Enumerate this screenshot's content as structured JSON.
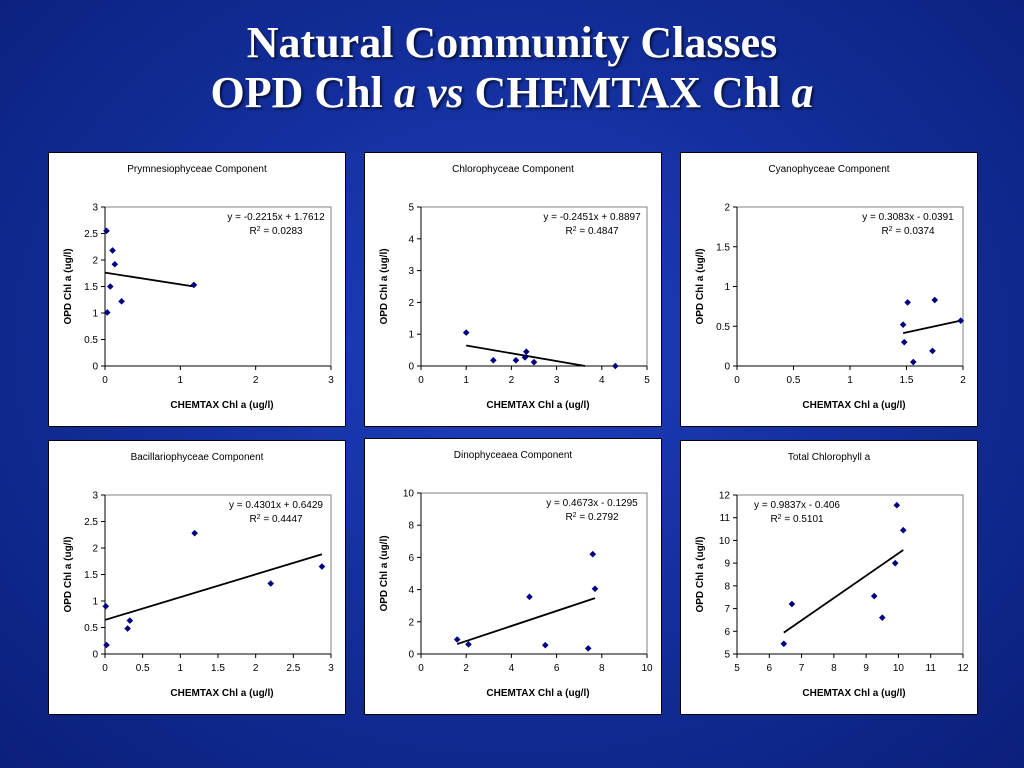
{
  "slide": {
    "title_line1": "Natural Community Classes",
    "title_line2_a": "OPD Chl ",
    "title_line2_b": "a vs",
    "title_line2_c": " CHEMTAX Chl ",
    "title_line2_d": "a"
  },
  "colors": {
    "background": "#14309f",
    "marker": "#000080",
    "line": "#000000"
  },
  "chart_data": [
    {
      "type": "scatter",
      "title": "Prymnesiophyceae Component",
      "xlabel": "CHEMTAX Chl a (ug/l)",
      "ylabel": "OPD Chl a (ug/l)",
      "xlim": [
        0,
        3
      ],
      "ylim": [
        0,
        3
      ],
      "xticks": [
        "0",
        "1",
        "2",
        "3"
      ],
      "yticks": [
        "0",
        "0.5",
        "1",
        "1.5",
        "2",
        "2.5",
        "3"
      ],
      "eq_line1": "y = -0.2215x + 1.7612",
      "eq_line2_a": "R",
      "eq_line2_b": "2",
      "eq_line2_c": " = 0.0283",
      "points": [
        [
          0.02,
          2.55
        ],
        [
          0.03,
          1.01
        ],
        [
          0.07,
          1.5
        ],
        [
          0.1,
          2.18
        ],
        [
          0.13,
          1.92
        ],
        [
          0.22,
          1.22
        ],
        [
          1.18,
          1.53
        ]
      ],
      "trend": [
        0,
        1.18
      ],
      "slope": -0.2215,
      "intercept": 1.7612
    },
    {
      "type": "scatter",
      "title": "Chlorophyceae Component",
      "xlabel": "CHEMTAX Chl a (ug/l)",
      "ylabel": "OPD Chl a (ug/l)",
      "xlim": [
        0,
        5
      ],
      "ylim": [
        0,
        5
      ],
      "xticks": [
        "0",
        "1",
        "2",
        "3",
        "4",
        "5"
      ],
      "yticks": [
        "0",
        "1",
        "2",
        "3",
        "4",
        "5"
      ],
      "eq_line1": "y = -0.2451x + 0.8897",
      "eq_line2_a": "R",
      "eq_line2_b": "2",
      "eq_line2_c": " = 0.4847",
      "points": [
        [
          1.0,
          1.05
        ],
        [
          1.6,
          0.18
        ],
        [
          2.1,
          0.18
        ],
        [
          2.3,
          0.27
        ],
        [
          2.33,
          0.45
        ],
        [
          2.5,
          0.12
        ],
        [
          4.3,
          0.0
        ]
      ],
      "trend": [
        1.0,
        3.63
      ],
      "slope": -0.2451,
      "intercept": 0.8897
    },
    {
      "type": "scatter",
      "title": "Cyanophyceae Component",
      "xlabel": "CHEMTAX Chl a (ug/l)",
      "ylabel": "OPD Chl a (ug/l)",
      "xlim": [
        0,
        2
      ],
      "ylim": [
        0,
        2
      ],
      "xticks": [
        "0",
        "0.5",
        "1",
        "1.5",
        "2"
      ],
      "yticks": [
        "0",
        "0.5",
        "1",
        "1.5",
        "2"
      ],
      "eq_line1": "y = 0.3083x - 0.0391",
      "eq_line2_a": "R",
      "eq_line2_b": "2",
      "eq_line2_c": " = 0.0374",
      "points": [
        [
          1.47,
          0.52
        ],
        [
          1.48,
          0.3
        ],
        [
          1.51,
          0.8
        ],
        [
          1.56,
          0.05
        ],
        [
          1.73,
          0.19
        ],
        [
          1.75,
          0.83
        ],
        [
          1.98,
          0.57
        ]
      ],
      "trend": [
        1.47,
        1.98
      ],
      "slope": 0.3083,
      "intercept": -0.0391
    },
    {
      "type": "scatter",
      "title": "Bacillariophyceae Component",
      "xlabel": "CHEMTAX Chl a (ug/l)",
      "ylabel": "OPD Chl a (ug/l)",
      "xlim": [
        0,
        3
      ],
      "ylim": [
        0,
        3
      ],
      "xticks": [
        "0",
        "0.5",
        "1",
        "1.5",
        "2",
        "2.5",
        "3"
      ],
      "yticks": [
        "0",
        "0.5",
        "1",
        "1.5",
        "2",
        "2.5",
        "3"
      ],
      "eq_line1": "y = 0.4301x + 0.6429",
      "eq_line2_a": "R",
      "eq_line2_b": "2",
      "eq_line2_c": " = 0.4447",
      "points": [
        [
          0.01,
          0.9
        ],
        [
          0.02,
          0.17
        ],
        [
          0.3,
          0.48
        ],
        [
          0.33,
          0.63
        ],
        [
          1.19,
          2.28
        ],
        [
          2.2,
          1.33
        ],
        [
          2.88,
          1.65
        ]
      ],
      "trend": [
        0.0,
        2.88
      ],
      "slope": 0.4301,
      "intercept": 0.6429
    },
    {
      "type": "scatter",
      "title": "Dinophyceaea Component",
      "xlabel": "CHEMTAX Chl a (ug/l)",
      "ylabel": "OPD Chl a (ug/l)",
      "xlim": [
        0,
        10
      ],
      "ylim": [
        0,
        10
      ],
      "xticks": [
        "0",
        "2",
        "4",
        "6",
        "8",
        "10"
      ],
      "yticks": [
        "0",
        "2",
        "4",
        "6",
        "8",
        "10"
      ],
      "eq_line1": "y = 0.4673x - 0.1295",
      "eq_line2_a": "R",
      "eq_line2_b": "2",
      "eq_line2_c": " = 0.2792",
      "points": [
        [
          1.6,
          0.9
        ],
        [
          2.1,
          0.6
        ],
        [
          4.8,
          3.55
        ],
        [
          5.5,
          0.55
        ],
        [
          7.4,
          0.35
        ],
        [
          7.6,
          6.2
        ],
        [
          7.7,
          4.05
        ]
      ],
      "trend": [
        1.6,
        7.7
      ],
      "slope": 0.4673,
      "intercept": -0.1295
    },
    {
      "type": "scatter",
      "title": "Total Chlorophyll a",
      "xlabel": "CHEMTAX Chl a (ug/l)",
      "ylabel": "OPD Chl a (ug/l)",
      "xlim": [
        5,
        12
      ],
      "ylim": [
        5,
        12
      ],
      "xticks": [
        "5",
        "6",
        "7",
        "8",
        "9",
        "10",
        "11",
        "12"
      ],
      "yticks": [
        "5",
        "6",
        "7",
        "8",
        "9",
        "10",
        "11",
        "12"
      ],
      "eq_line1": "y = 0.9837x - 0.406",
      "eq_line2_a": "R",
      "eq_line2_b": "2",
      "eq_line2_c": " = 0.5101",
      "points": [
        [
          6.45,
          5.45
        ],
        [
          6.7,
          7.2
        ],
        [
          9.25,
          7.55
        ],
        [
          9.5,
          6.6
        ],
        [
          9.9,
          9.0
        ],
        [
          9.95,
          11.55
        ],
        [
          10.15,
          10.45
        ]
      ],
      "trend": [
        6.45,
        10.15
      ],
      "slope": 0.9837,
      "intercept": -0.406
    }
  ]
}
